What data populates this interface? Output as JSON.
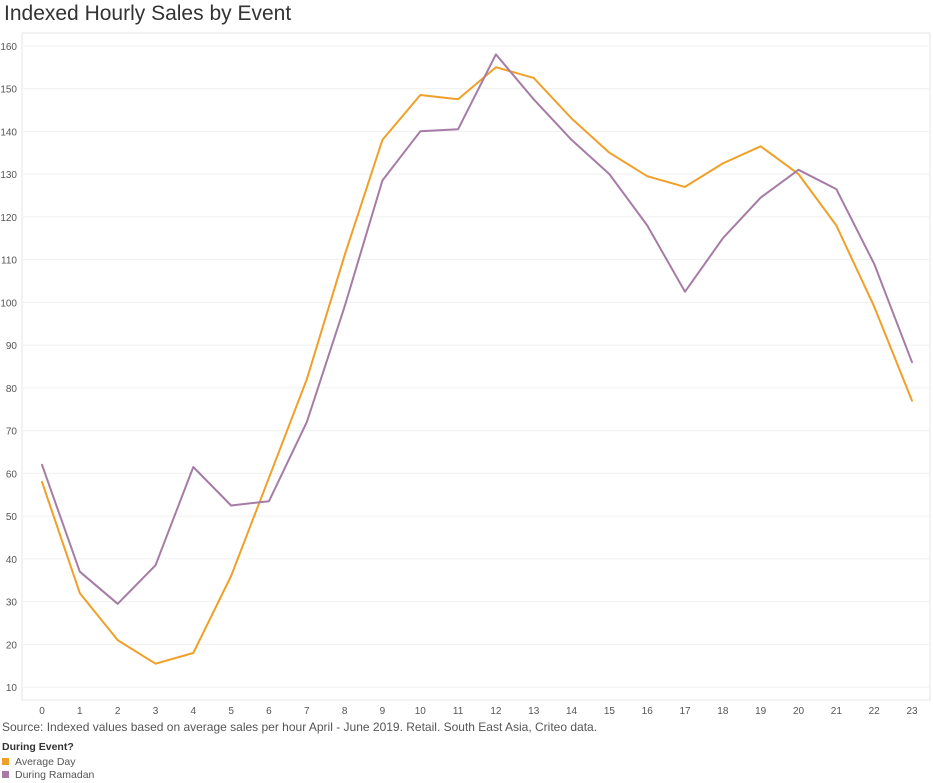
{
  "chart_data": {
    "type": "line",
    "title": "Indexed Hourly Sales by Event",
    "xlabel": "",
    "ylabel": "",
    "x": [
      0,
      1,
      2,
      3,
      4,
      5,
      6,
      7,
      8,
      9,
      10,
      11,
      12,
      13,
      14,
      15,
      16,
      17,
      18,
      19,
      20,
      21,
      22,
      23
    ],
    "xticks": [
      "0",
      "1",
      "2",
      "3",
      "4",
      "5",
      "6",
      "7",
      "8",
      "9",
      "10",
      "11",
      "12",
      "13",
      "14",
      "15",
      "16",
      "17",
      "18",
      "19",
      "20",
      "21",
      "22",
      "23"
    ],
    "yticks": [
      "10",
      "20",
      "30",
      "40",
      "50",
      "60",
      "70",
      "80",
      "90",
      "100",
      "110",
      "120",
      "130",
      "140",
      "150",
      "160"
    ],
    "ylim": [
      7,
      163
    ],
    "grid": "horizontal",
    "legend_position": "bottom-left",
    "series": [
      {
        "name": "Average Day",
        "color": "#F0A028",
        "values": [
          58,
          32,
          21,
          15.5,
          18,
          36,
          59,
          82,
          111,
          138,
          148.5,
          147.5,
          155,
          152.5,
          143,
          135,
          129.5,
          127,
          132.5,
          136.5,
          130,
          118,
          99,
          77
        ]
      },
      {
        "name": "During Ramadan",
        "color": "#A67CA6",
        "values": [
          62,
          37,
          29.5,
          38.5,
          61.5,
          52.5,
          53.5,
          72,
          99,
          128.5,
          140,
          140.5,
          158,
          147.5,
          138,
          130,
          118,
          102.5,
          115,
          124.5,
          131,
          126.5,
          109,
          86
        ]
      }
    ]
  },
  "source_text": "Source: Indexed values based on average sales per hour April - June 2019. Retail. South East Asia, Criteo data.",
  "legend": {
    "title": "During Event?",
    "items": [
      {
        "label": "Average Day",
        "color": "#F0A028"
      },
      {
        "label": "During Ramadan",
        "color": "#A67CA6"
      }
    ]
  }
}
